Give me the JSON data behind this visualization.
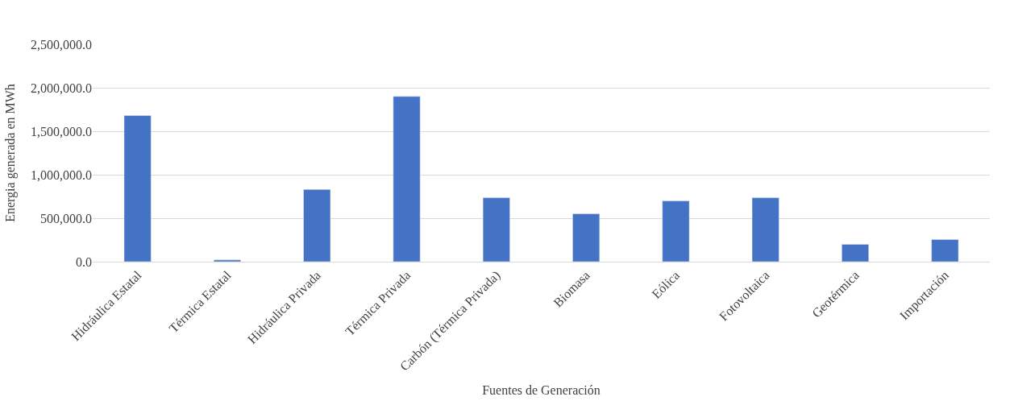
{
  "chart_data": {
    "type": "bar",
    "xlabel": "Fuentes de Generación",
    "ylabel": "Energia generada en MWh",
    "categories": [
      "Hidráulica Estatal",
      "Térmica Estatal",
      "Hidráulica Privada",
      "Térmica Privada",
      "Carbón (Térmica Privada)",
      "Biomasa",
      "Eólica",
      "Fotovoltaica",
      "Geotérmica",
      "Importación"
    ],
    "values": [
      1680000,
      20000,
      830000,
      1900000,
      735000,
      550000,
      700000,
      735000,
      200000,
      255000
    ],
    "color": "#4472c4",
    "ylim": [
      0,
      2500000
    ],
    "yticks": [
      {
        "value": 0,
        "label": "0.0"
      },
      {
        "value": 500000,
        "label": "500,000.0"
      },
      {
        "value": 1000000,
        "label": "1,000,000.0"
      },
      {
        "value": 1500000,
        "label": "1,500,000.0"
      },
      {
        "value": 2000000,
        "label": "2,000,000.0"
      },
      {
        "value": 2500000,
        "label": "2,500,000.0"
      }
    ],
    "grid": "y",
    "legend": false
  }
}
